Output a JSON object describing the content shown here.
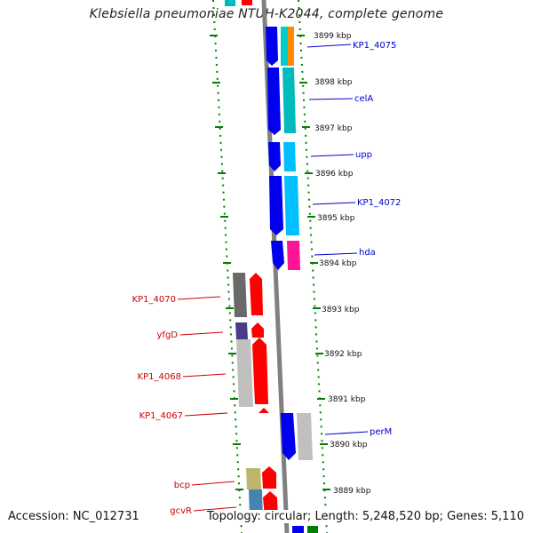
{
  "title": "Klebsiella pneumoniae NTUH-K2044, complete genome",
  "accession": "Accession: NC_012731",
  "topology": "Topology: circular; Length: 5,248,520 bp; Genes: 5,110",
  "scale_labels": [
    "3899 kbp",
    "3898 kbp",
    "3897 kbp",
    "3896 kbp",
    "3895 kbp",
    "3894 kbp",
    "3893 kbp",
    "3892 kbp",
    "3891 kbp",
    "3890 kbp",
    "3889 kbp"
  ],
  "right_genes": [
    "KP1_4075",
    "celA",
    "upp",
    "KP1_4072",
    "hda",
    "perM"
  ],
  "left_genes": [
    "KP1_4070",
    "yfgD",
    "KP1_4068",
    "KP1_4067",
    "bcp",
    "gcvR"
  ],
  "colors": {
    "forward_gene": "#0000ee",
    "reverse_gene": "#ff0000",
    "backbone": "#808080",
    "tick": "#008000",
    "right_label": "#0000cc",
    "left_label": "#cc0000"
  }
}
